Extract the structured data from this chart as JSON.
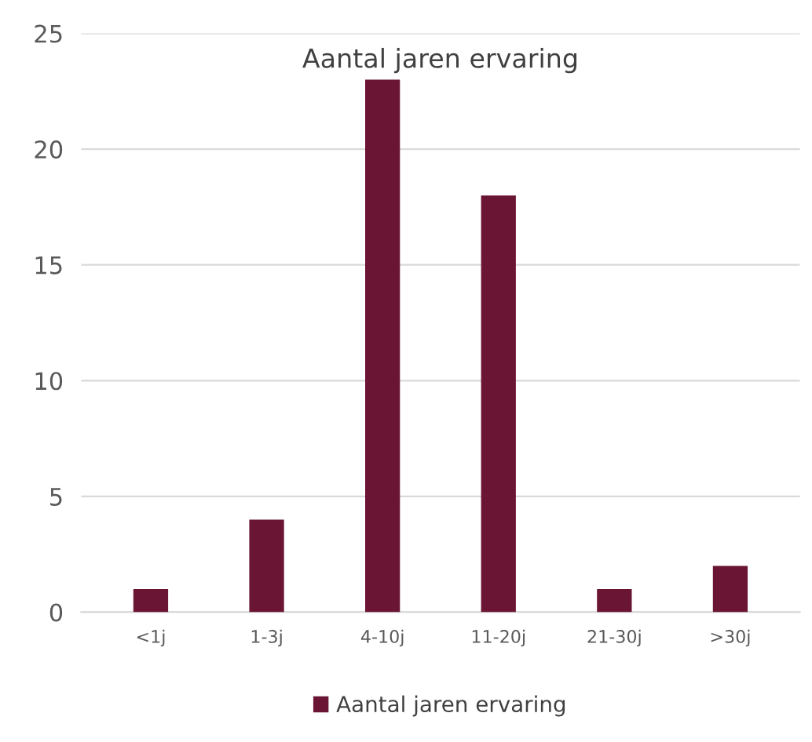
{
  "chart_data": {
    "type": "bar",
    "title": "Aantal jaren ervaring",
    "categories": [
      "<1j",
      "1-3j",
      "4-10j",
      "11-20j",
      "21-30j",
      ">30j"
    ],
    "series": [
      {
        "name": "Aantal jaren ervaring",
        "color": "#6b1535",
        "values": [
          1,
          4,
          23,
          18,
          1,
          2
        ]
      }
    ],
    "ylim": [
      0,
      25
    ],
    "yticks": [
      0,
      5,
      10,
      15,
      20,
      25
    ],
    "grid": "y",
    "legend": "bottom"
  }
}
